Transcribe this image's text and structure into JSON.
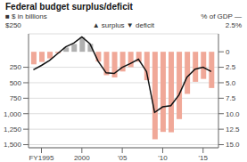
{
  "chart_data": {
    "type": "bar",
    "title": "Federal budget surplus/deficit",
    "annotations": [
      "$250",
      "2.5%",
      "▲ surplus",
      "▼  deficit"
    ],
    "x": [
      1994,
      1995,
      1996,
      1997,
      1998,
      1999,
      2000,
      2001,
      2002,
      2003,
      2004,
      2005,
      2006,
      2007,
      2008,
      2009,
      2010,
      2011,
      2012,
      2013,
      2014,
      2015,
      2016
    ],
    "xlim": [
      1993.4,
      2016.9
    ],
    "xticks": [
      {
        "value": 1995,
        "label": "FY1995"
      },
      2000,
      {
        "value": 2005,
        "label": "'05"
      },
      {
        "value": 2010,
        "label": "'10"
      },
      {
        "value": 2015,
        "label": "'15"
      }
    ],
    "ylim": [
      1550,
      -290
    ],
    "yticks": [
      250,
      500,
      750,
      {
        "value": 1000,
        "label": "1,000"
      },
      {
        "value": 1250,
        "label": "1,250"
      },
      {
        "value": 1500,
        "label": "1,500"
      }
    ],
    "y2lim": [
      15.5,
      -2.9
    ],
    "y2ticks": [
      0,
      2.5,
      {
        "value": 5,
        "label": "5.0"
      },
      7.5,
      {
        "value": 10,
        "label": "10.0"
      },
      12.5,
      {
        "value": 15,
        "label": "15.0"
      }
    ],
    "grid": true,
    "series": [
      {
        "name": "■ $ in billions",
        "type": "bar",
        "colors": [
          "#f0a898",
          "#f0a898",
          "#f0a898",
          "#f0a898",
          "#b0b0b0",
          "#b0b0b0",
          "#b0b0b0",
          "#b0b0b0",
          "#f0a898",
          "#f0a898",
          "#f0a898",
          "#f0a898",
          "#f0a898",
          "#f0a898",
          "#f0a898",
          "#f0a898",
          "#f0a898",
          "#f0a898",
          "#f0a898",
          "#f0a898",
          "#f0a898",
          "#f0a898",
          "#f0a898"
        ],
        "values": [
          203,
          164,
          107,
          22,
          -69,
          -126,
          -236,
          -128,
          158,
          378,
          413,
          318,
          248,
          161,
          459,
          1413,
          1294,
          1300,
          1087,
          680,
          485,
          438,
          585
        ]
      },
      {
        "name": "% of GDP —",
        "type": "line",
        "axis": "y2",
        "color": "#111111",
        "values": [
          2.9,
          2.2,
          1.4,
          0.3,
          -0.8,
          -1.4,
          -2.4,
          -1.3,
          1.5,
          3.4,
          3.5,
          2.5,
          1.9,
          1.2,
          3.2,
          9.8,
          8.9,
          8.7,
          7.0,
          4.1,
          2.8,
          2.5,
          3.2
        ]
      }
    ]
  }
}
